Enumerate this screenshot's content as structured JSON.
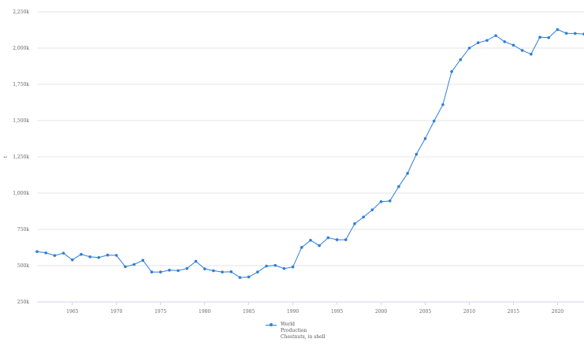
{
  "chart_data": {
    "type": "line",
    "xlabel": "",
    "ylabel": "t",
    "xlim": [
      1961,
      2023
    ],
    "ylim": [
      250000,
      2250000
    ],
    "x_ticks": [
      1965,
      1970,
      1975,
      1980,
      1985,
      1990,
      1995,
      2000,
      2005,
      2010,
      2015,
      2020
    ],
    "y_ticks": [
      {
        "value": 250000,
        "label": "250k"
      },
      {
        "value": 500000,
        "label": "500k"
      },
      {
        "value": 750000,
        "label": "750k"
      },
      {
        "value": 1000000,
        "label": "1,000k"
      },
      {
        "value": 1250000,
        "label": "1,250k"
      },
      {
        "value": 1500000,
        "label": "1,500k"
      },
      {
        "value": 1750000,
        "label": "1,750k"
      },
      {
        "value": 2000000,
        "label": "2,000k"
      },
      {
        "value": 2250000,
        "label": "2,250k"
      }
    ],
    "grid": true,
    "legend_position": "bottom-center",
    "series": [
      {
        "name": "World Production Chestnuts, in shell",
        "legend_lines": [
          "World",
          "Production",
          "Chestnuts, in shell"
        ],
        "color": "#2f7ed8",
        "x": [
          1961,
          1962,
          1963,
          1964,
          1965,
          1966,
          1967,
          1968,
          1969,
          1970,
          1971,
          1972,
          1973,
          1974,
          1975,
          1976,
          1977,
          1978,
          1979,
          1980,
          1981,
          1982,
          1983,
          1984,
          1985,
          1986,
          1987,
          1988,
          1989,
          1990,
          1991,
          1992,
          1993,
          1994,
          1995,
          1996,
          1997,
          1998,
          1999,
          2000,
          2001,
          2002,
          2003,
          2004,
          2005,
          2006,
          2007,
          2008,
          2009,
          2010,
          2011,
          2012,
          2013,
          2014,
          2015,
          2016,
          2017,
          2018,
          2019,
          2020,
          2021,
          2022,
          2023
        ],
        "values": [
          597000,
          588000,
          570000,
          586000,
          540000,
          578000,
          561000,
          556000,
          573000,
          571000,
          493000,
          508000,
          537000,
          456000,
          456000,
          469000,
          466000,
          481000,
          530000,
          478000,
          465000,
          456000,
          458000,
          418000,
          422000,
          456000,
          497000,
          502000,
          480000,
          491000,
          626000,
          675000,
          638000,
          693000,
          679000,
          679000,
          789000,
          835000,
          885000,
          941000,
          946000,
          1045000,
          1136000,
          1268000,
          1376000,
          1497000,
          1610000,
          1838000,
          1920000,
          2000000,
          2037000,
          2053000,
          2086000,
          2044000,
          2020000,
          1984000,
          1958000,
          2075000,
          2072000,
          2128000,
          2102000,
          2101000,
          2097000
        ]
      }
    ]
  }
}
